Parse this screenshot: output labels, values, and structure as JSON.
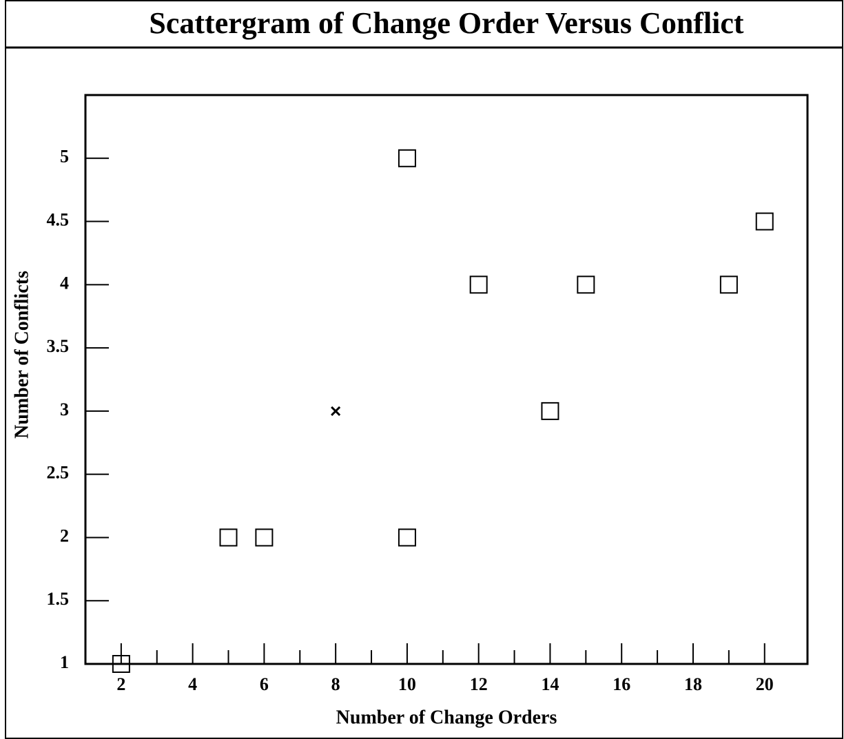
{
  "chart_data": {
    "type": "scatter",
    "title": "Scattergram of Change Order Versus Conflict",
    "xlabel": "Number of Change Orders",
    "ylabel": "Number of Conflicts",
    "series": [
      {
        "marker": "square",
        "color": "#000000",
        "x": [
          2,
          5,
          6,
          10,
          10,
          12,
          14,
          15,
          19,
          20
        ],
        "values": [
          1,
          2,
          2,
          5,
          2,
          4,
          3,
          4,
          4,
          4.5
        ]
      },
      {
        "marker": "x",
        "color": "#000000",
        "x": [
          8
        ],
        "values": [
          3
        ]
      }
    ],
    "xlim": [
      1,
      21.2
    ],
    "xticks": [
      2,
      4,
      6,
      8,
      10,
      12,
      14,
      16,
      18,
      20
    ],
    "xminor_ticks": [
      3,
      5,
      7,
      9,
      11,
      13,
      15,
      17,
      19
    ],
    "ylim": [
      1,
      5.5
    ],
    "yticks": [
      1,
      1.5,
      2,
      2.5,
      3,
      3.5,
      4,
      4.5,
      5
    ],
    "grid": false
  }
}
